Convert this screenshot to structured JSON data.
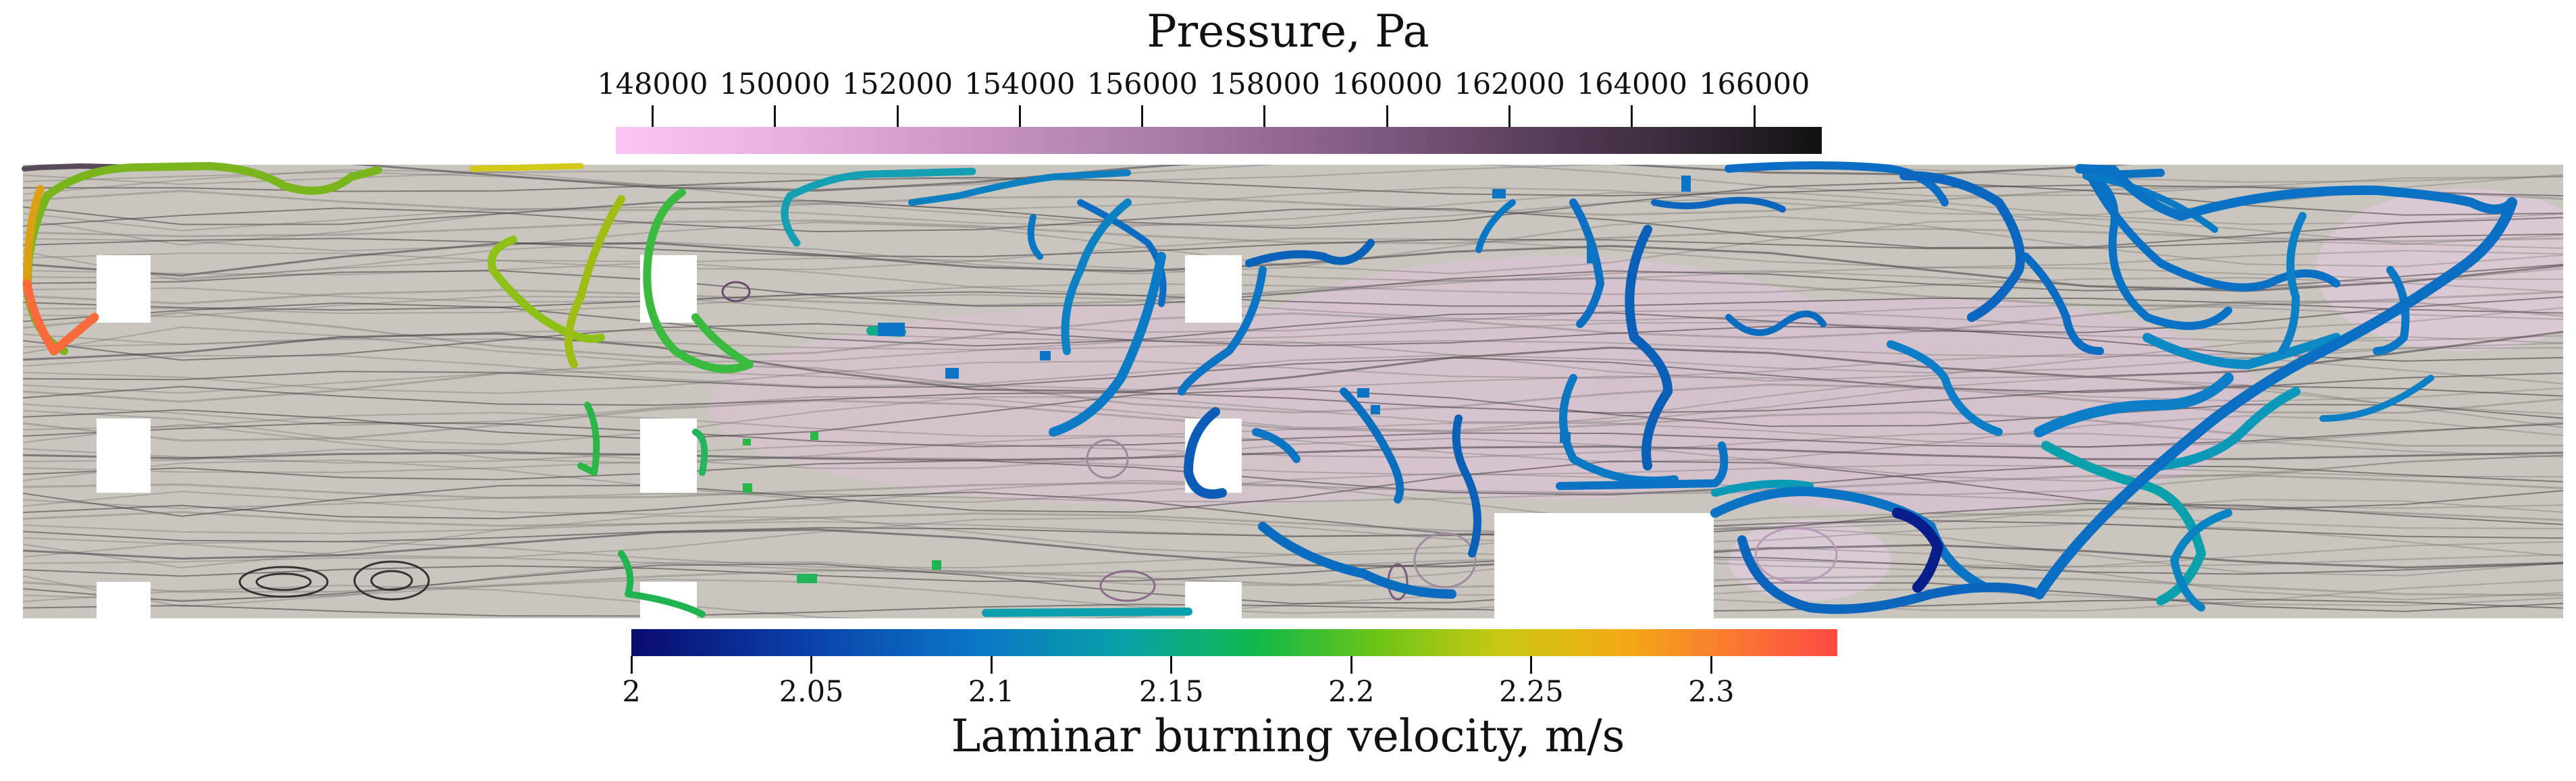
{
  "pressure_legend": {
    "title": "Pressure, Pa",
    "ticks": [
      "148000",
      "150000",
      "152000",
      "154000",
      "156000",
      "158000",
      "160000",
      "162000",
      "164000",
      "166000"
    ],
    "range": [
      147400,
      167100
    ],
    "colors": [
      "#f9c6f3",
      "#111111"
    ]
  },
  "velocity_legend": {
    "title": "Laminar burning velocity, m/s",
    "ticks": [
      "2",
      "2.05",
      "2.1",
      "2.15",
      "2.2",
      "2.25",
      "2.3"
    ],
    "range": [
      2.0,
      2.335
    ],
    "colors": [
      "#0a0b6e",
      "#0b3fa8",
      "#0a74c6",
      "#08a2a6",
      "#12b94a",
      "#6ec417",
      "#c9c814",
      "#f3ab14",
      "#f97a32",
      "#fb4a44"
    ]
  },
  "domain_colors": {
    "background": "#c9c6bf",
    "obstacle": "#ffffff",
    "streamline": "#5a5a5a"
  }
}
